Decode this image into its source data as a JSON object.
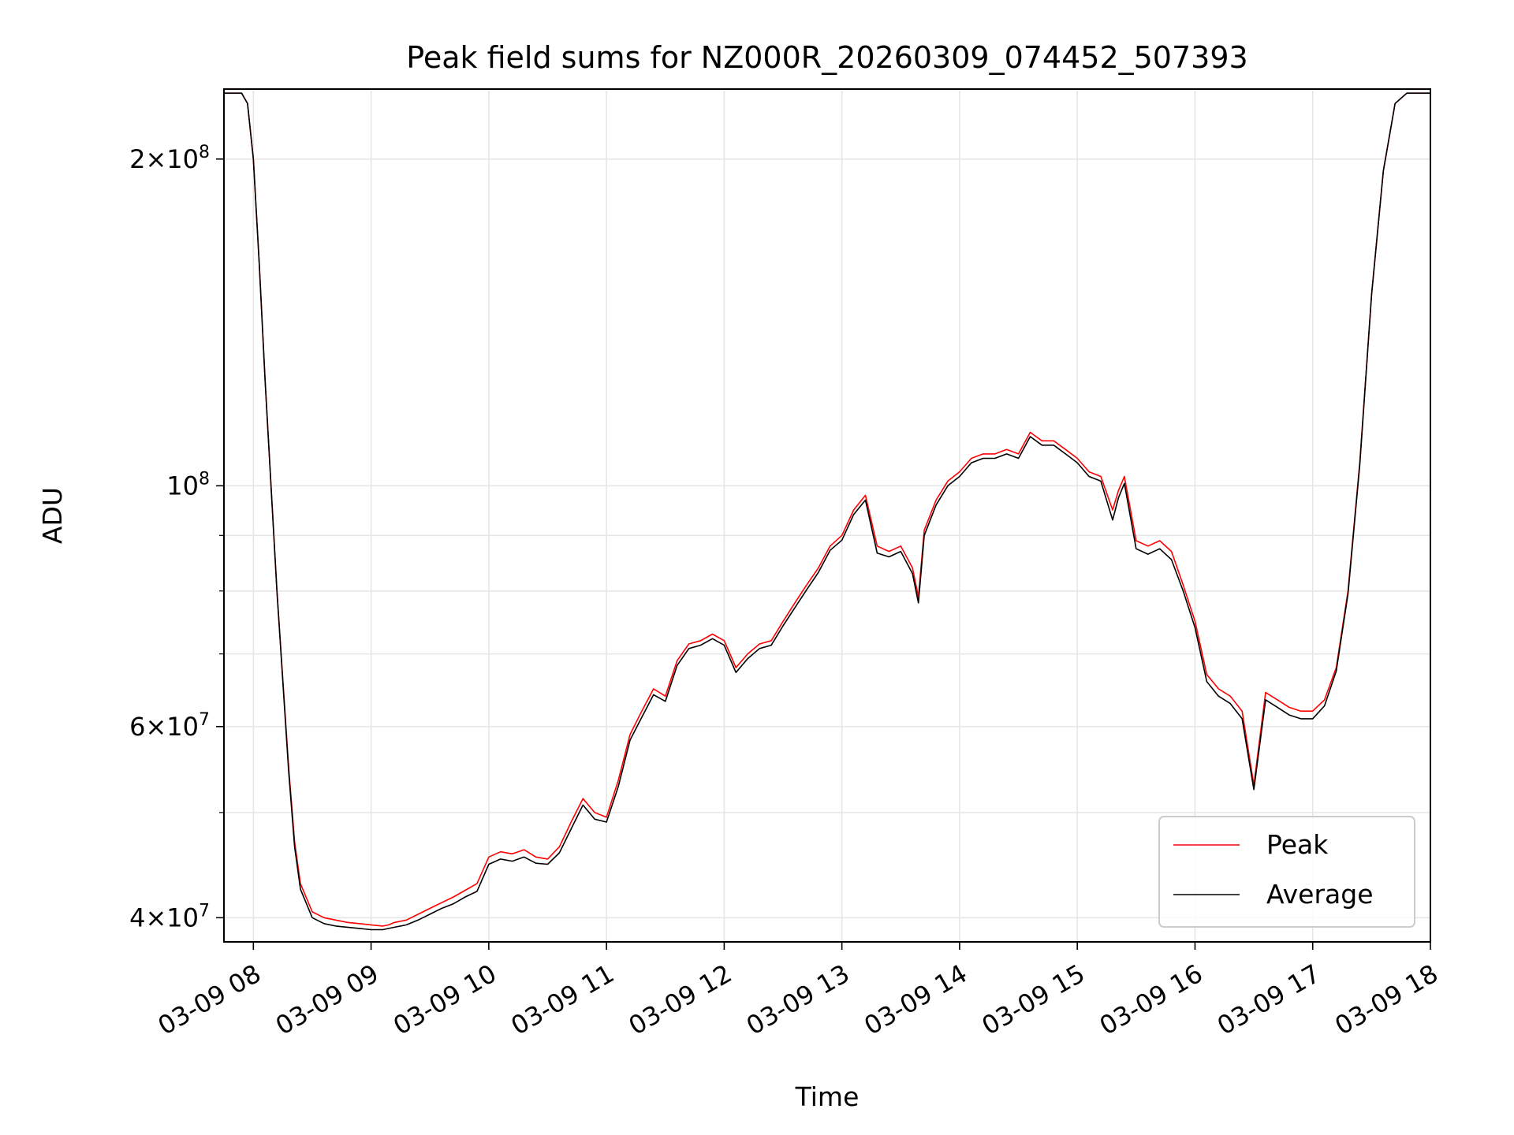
{
  "chart_data": {
    "type": "line",
    "title": "Peak field sums for NZ000R_20260309_074452_507393",
    "xlabel": "Time",
    "ylabel": "ADU",
    "x_unit": "hours of day, 2026-03-09",
    "xlim": [
      7.75,
      18.0
    ],
    "ylim": [
      38000000,
      232000000
    ],
    "yscale": "log",
    "grid": true,
    "legend_position": "lower right",
    "x_ticks": [
      {
        "value": 8,
        "label": "03-09 08"
      },
      {
        "value": 9,
        "label": "03-09 09"
      },
      {
        "value": 10,
        "label": "03-09 10"
      },
      {
        "value": 11,
        "label": "03-09 11"
      },
      {
        "value": 12,
        "label": "03-09 12"
      },
      {
        "value": 13,
        "label": "03-09 13"
      },
      {
        "value": 14,
        "label": "03-09 14"
      },
      {
        "value": 15,
        "label": "03-09 15"
      },
      {
        "value": 16,
        "label": "03-09 16"
      },
      {
        "value": 17,
        "label": "03-09 17"
      },
      {
        "value": 18,
        "label": "03-09 18"
      }
    ],
    "y_major_ticks": [
      {
        "value": 40000000,
        "mantissa": "4",
        "exponent": "7"
      },
      {
        "value": 60000000,
        "mantissa": "6",
        "exponent": "7"
      },
      {
        "value": 100000000,
        "mantissa": "",
        "exponent": "8"
      },
      {
        "value": 200000000,
        "mantissa": "2",
        "exponent": "8"
      }
    ],
    "y_minor_ticks": [
      50000000,
      70000000,
      80000000,
      90000000
    ],
    "series": [
      {
        "name": "Peak",
        "color": "#ff0000",
        "x": [
          7.75,
          7.9,
          7.95,
          8.0,
          8.05,
          8.1,
          8.2,
          8.3,
          8.35,
          8.4,
          8.5,
          8.6,
          8.7,
          8.8,
          8.9,
          9.0,
          9.1,
          9.15,
          9.2,
          9.3,
          9.4,
          9.5,
          9.6,
          9.7,
          9.8,
          9.9,
          10.0,
          10.1,
          10.2,
          10.3,
          10.4,
          10.5,
          10.6,
          10.7,
          10.8,
          10.9,
          11.0,
          11.1,
          11.2,
          11.3,
          11.4,
          11.5,
          11.6,
          11.7,
          11.8,
          11.9,
          12.0,
          12.1,
          12.2,
          12.3,
          12.4,
          12.5,
          12.6,
          12.7,
          12.8,
          12.9,
          13.0,
          13.1,
          13.2,
          13.3,
          13.4,
          13.5,
          13.6,
          13.65,
          13.7,
          13.8,
          13.9,
          14.0,
          14.1,
          14.2,
          14.3,
          14.4,
          14.5,
          14.6,
          14.7,
          14.8,
          14.9,
          15.0,
          15.1,
          15.2,
          15.3,
          15.35,
          15.4,
          15.5,
          15.6,
          15.7,
          15.8,
          15.9,
          16.0,
          16.1,
          16.2,
          16.3,
          16.4,
          16.5,
          16.6,
          16.7,
          16.8,
          16.9,
          17.0,
          17.1,
          17.2,
          17.3,
          17.4,
          17.5,
          17.6,
          17.7,
          17.8,
          17.9,
          18.0
        ],
        "y": [
          230000000,
          230000000,
          225000000,
          200000000,
          160000000,
          125000000,
          80000000,
          55000000,
          47000000,
          43000000,
          40500000,
          40000000,
          39800000,
          39600000,
          39500000,
          39400000,
          39300000,
          39400000,
          39600000,
          39800000,
          40300000,
          40800000,
          41300000,
          41800000,
          42400000,
          43000000,
          45500000,
          46000000,
          45800000,
          46200000,
          45500000,
          45300000,
          46500000,
          49000000,
          51500000,
          50000000,
          49500000,
          53500000,
          59000000,
          62000000,
          65000000,
          64000000,
          69000000,
          71500000,
          72000000,
          73000000,
          72000000,
          68000000,
          70000000,
          71500000,
          72000000,
          75000000,
          78000000,
          81000000,
          84000000,
          88000000,
          90000000,
          95000000,
          98000000,
          88000000,
          87000000,
          88000000,
          84000000,
          79000000,
          91000000,
          97000000,
          101000000,
          103000000,
          106000000,
          107000000,
          107000000,
          108000000,
          107000000,
          112000000,
          110000000,
          110000000,
          108000000,
          106000000,
          103000000,
          102000000,
          95000000,
          99000000,
          102000000,
          89000000,
          88000000,
          89000000,
          87000000,
          81000000,
          75000000,
          67000000,
          65000000,
          64000000,
          62000000,
          53000000,
          64500000,
          63500000,
          62500000,
          62000000,
          62000000,
          63500000,
          68000000,
          80000000,
          105000000,
          150000000,
          195000000,
          225000000,
          230000000,
          230000000,
          230000000
        ]
      },
      {
        "name": "Average",
        "color": "#000000",
        "x": [
          7.75,
          7.9,
          7.95,
          8.0,
          8.05,
          8.1,
          8.2,
          8.3,
          8.35,
          8.4,
          8.5,
          8.6,
          8.7,
          8.8,
          8.9,
          9.0,
          9.1,
          9.15,
          9.2,
          9.3,
          9.4,
          9.5,
          9.6,
          9.7,
          9.8,
          9.9,
          10.0,
          10.1,
          10.2,
          10.3,
          10.4,
          10.5,
          10.6,
          10.7,
          10.8,
          10.9,
          11.0,
          11.1,
          11.2,
          11.3,
          11.4,
          11.5,
          11.6,
          11.7,
          11.8,
          11.9,
          12.0,
          12.1,
          12.2,
          12.3,
          12.4,
          12.5,
          12.6,
          12.7,
          12.8,
          12.9,
          13.0,
          13.1,
          13.2,
          13.3,
          13.4,
          13.5,
          13.6,
          13.65,
          13.7,
          13.8,
          13.9,
          14.0,
          14.1,
          14.2,
          14.3,
          14.4,
          14.5,
          14.6,
          14.7,
          14.8,
          14.9,
          15.0,
          15.1,
          15.2,
          15.3,
          15.35,
          15.4,
          15.5,
          15.6,
          15.7,
          15.8,
          15.9,
          16.0,
          16.1,
          16.2,
          16.3,
          16.4,
          16.5,
          16.6,
          16.7,
          16.8,
          16.9,
          17.0,
          17.1,
          17.2,
          17.3,
          17.4,
          17.5,
          17.6,
          17.7,
          17.8,
          17.9,
          18.0
        ],
        "y": [
          230000000,
          230000000,
          225000000,
          200000000,
          160000000,
          125000000,
          80000000,
          54500000,
          46500000,
          42500000,
          40000000,
          39500000,
          39300000,
          39200000,
          39100000,
          39000000,
          39000000,
          39100000,
          39200000,
          39400000,
          39800000,
          40300000,
          40800000,
          41200000,
          41800000,
          42300000,
          44800000,
          45300000,
          45100000,
          45500000,
          44900000,
          44800000,
          45900000,
          48300000,
          50800000,
          49300000,
          49000000,
          52800000,
          58300000,
          61200000,
          64200000,
          63300000,
          68300000,
          70800000,
          71300000,
          72300000,
          71300000,
          67300000,
          69300000,
          70800000,
          71300000,
          74300000,
          77200000,
          80200000,
          83200000,
          87200000,
          89100000,
          94100000,
          97000000,
          86700000,
          86000000,
          87000000,
          83000000,
          78000000,
          90000000,
          96000000,
          100000000,
          102000000,
          105000000,
          106000000,
          106000000,
          107000000,
          106000000,
          111000000,
          109000000,
          109000000,
          107000000,
          105000000,
          102000000,
          101000000,
          93000000,
          97500000,
          100500000,
          87500000,
          86500000,
          87500000,
          85500000,
          80000000,
          74000000,
          66000000,
          64000000,
          63000000,
          61000000,
          52500000,
          63500000,
          62500000,
          61500000,
          61000000,
          61000000,
          62700000,
          67500000,
          79500000,
          104500000,
          150000000,
          195000000,
          225000000,
          230000000,
          230000000,
          230000000
        ]
      }
    ]
  }
}
